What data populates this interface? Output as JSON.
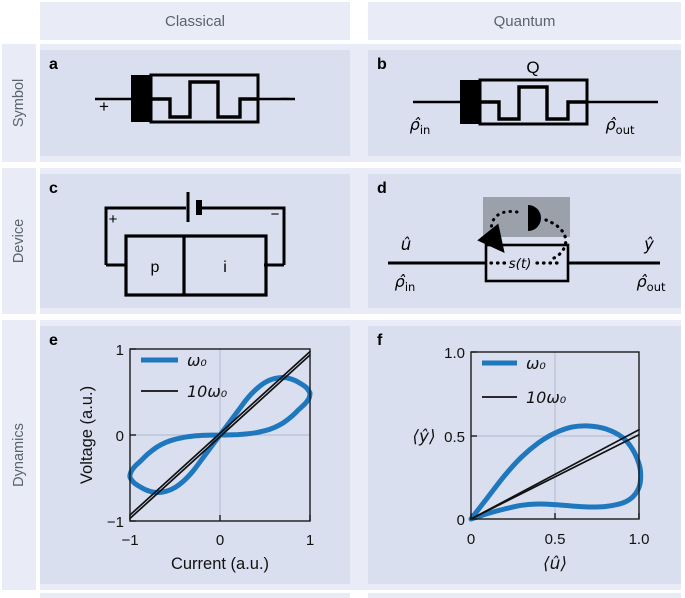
{
  "figure": {
    "columns": {
      "classical": "Classical",
      "quantum": "Quantum"
    },
    "rows": {
      "symbol": "Symbol",
      "device": "Device",
      "dynamics": "Dynamics"
    }
  },
  "panels": {
    "a": {
      "letter": "a",
      "plus": "+",
      "minus": "−"
    },
    "b": {
      "letter": "b",
      "q_label": "Q",
      "rho_in": "ρ̂",
      "rho_in_sub": "in",
      "rho_out": "ρ̂",
      "rho_out_sub": "out"
    },
    "c": {
      "letter": "c",
      "plus": "+",
      "minus": "−",
      "p_region": "p",
      "i_region": "i"
    },
    "d": {
      "letter": "d",
      "u_hat": "û",
      "y_hat": "ŷ",
      "rho_in": "ρ̂",
      "rho_in_sub": "in",
      "rho_out": "ρ̂",
      "rho_out_sub": "out",
      "state_label": "s(t)"
    },
    "e": {
      "letter": "e"
    },
    "f": {
      "letter": "f"
    }
  },
  "colors": {
    "blue_curve": "#1f78bd",
    "black_curve": "#111111",
    "panel_bg": "#d9dfef",
    "band_bg": "#e9ecf6",
    "detector_box_gray": "#9aa1aa",
    "heading_text": "#5a6270"
  },
  "chart_data": [
    {
      "id": "e",
      "type": "line",
      "xlabel": "Current (a.u.)",
      "ylabel": "Voltage (a.u.)",
      "xlim": [
        -1,
        1
      ],
      "ylim": [
        -1,
        1
      ],
      "grid": "center lines at 0,0",
      "legend_position": "upper left",
      "xticks": [
        "−1",
        "0",
        "1"
      ],
      "yticks": [
        "1",
        "0",
        "−1"
      ],
      "legend": [
        {
          "label": "ω₀"
        },
        {
          "label": "10ω₀"
        }
      ],
      "series": [
        {
          "name": "omega0",
          "color": "#1f78bd",
          "width": 5,
          "segments": [
            [
              [
                1.0,
                0.49
              ],
              [
                0.99,
                0.43
              ],
              [
                0.95,
                0.37
              ],
              [
                0.88,
                0.3
              ],
              [
                0.8,
                0.22
              ],
              [
                0.7,
                0.14
              ],
              [
                0.6,
                0.085
              ],
              [
                0.5,
                0.05
              ],
              [
                0.4,
                0.027
              ],
              [
                0.3,
                0.013
              ],
              [
                0.2,
                0.005
              ],
              [
                0.1,
                0.001
              ],
              [
                0,
                0
              ],
              [
                -0.1,
                -0.001
              ],
              [
                -0.2,
                -0.005
              ],
              [
                -0.3,
                -0.013
              ],
              [
                -0.4,
                -0.027
              ],
              [
                -0.5,
                -0.05
              ],
              [
                -0.6,
                -0.085
              ],
              [
                -0.7,
                -0.14
              ],
              [
                -0.8,
                -0.22
              ],
              [
                -0.88,
                -0.3
              ],
              [
                -0.95,
                -0.37
              ],
              [
                -0.99,
                -0.43
              ],
              [
                -1.0,
                -0.49
              ],
              [
                -0.96,
                -0.55
              ],
              [
                -0.9,
                -0.595
              ],
              [
                -0.82,
                -0.64
              ],
              [
                -0.72,
                -0.668
              ],
              [
                -0.6,
                -0.655
              ],
              [
                -0.5,
                -0.61
              ],
              [
                -0.4,
                -0.53
              ],
              [
                -0.3,
                -0.42
              ],
              [
                -0.2,
                -0.28
              ],
              [
                -0.1,
                -0.14
              ],
              [
                0,
                0
              ],
              [
                0.1,
                0.14
              ],
              [
                0.2,
                0.28
              ],
              [
                0.3,
                0.42
              ],
              [
                0.4,
                0.53
              ],
              [
                0.5,
                0.61
              ],
              [
                0.6,
                0.655
              ],
              [
                0.72,
                0.668
              ],
              [
                0.82,
                0.64
              ],
              [
                0.9,
                0.595
              ],
              [
                0.96,
                0.55
              ],
              [
                1.0,
                0.49
              ]
            ]
          ]
        },
        {
          "name": "10omega0",
          "color": "#111111",
          "width": 1.7,
          "segments": [
            [
              [
                -1,
                -0.97
              ],
              [
                1,
                0.93
              ]
            ],
            [
              [
                -1,
                -0.93
              ],
              [
                1,
                0.97
              ]
            ]
          ]
        }
      ]
    },
    {
      "id": "f",
      "type": "line",
      "xlabel": "⟨û⟩",
      "ylabel": "⟨ŷ⟩",
      "xlim": [
        0,
        1
      ],
      "ylim": [
        0,
        1
      ],
      "grid": "center lines at 0.5,0.5",
      "legend_position": "upper left",
      "xticks": [
        "0",
        "0.5",
        "1.0"
      ],
      "yticks": [
        "1.0",
        "0.5",
        "0"
      ],
      "legend": [
        {
          "label": "ω₀"
        },
        {
          "label": "10ω₀"
        }
      ],
      "series": [
        {
          "name": "omega0",
          "color": "#1f78bd",
          "width": 5,
          "segments": [
            [
              [
                0,
                0
              ],
              [
                0.05,
                0.065
              ],
              [
                0.1,
                0.13
              ],
              [
                0.2,
                0.26
              ],
              [
                0.3,
                0.37
              ],
              [
                0.4,
                0.455
              ],
              [
                0.5,
                0.515
              ],
              [
                0.6,
                0.55
              ],
              [
                0.7,
                0.557
              ],
              [
                0.8,
                0.54
              ],
              [
                0.9,
                0.49
              ],
              [
                0.96,
                0.42
              ],
              [
                1.0,
                0.33
              ],
              [
                1.01,
                0.26
              ],
              [
                1.0,
                0.19
              ],
              [
                0.96,
                0.13
              ],
              [
                0.9,
                0.095
              ],
              [
                0.8,
                0.075
              ],
              [
                0.7,
                0.072
              ],
              [
                0.6,
                0.078
              ],
              [
                0.5,
                0.086
              ],
              [
                0.4,
                0.09
              ],
              [
                0.3,
                0.082
              ],
              [
                0.2,
                0.06
              ],
              [
                0.1,
                0.033
              ],
              [
                0.05,
                0.017
              ],
              [
                0,
                0
              ]
            ]
          ]
        },
        {
          "name": "10omega0",
          "color": "#111111",
          "width": 1.7,
          "segments": [
            [
              [
                0,
                0
              ],
              [
                1,
                0.535
              ]
            ],
            [
              [
                0,
                0
              ],
              [
                1,
                0.505
              ]
            ]
          ]
        }
      ]
    }
  ]
}
